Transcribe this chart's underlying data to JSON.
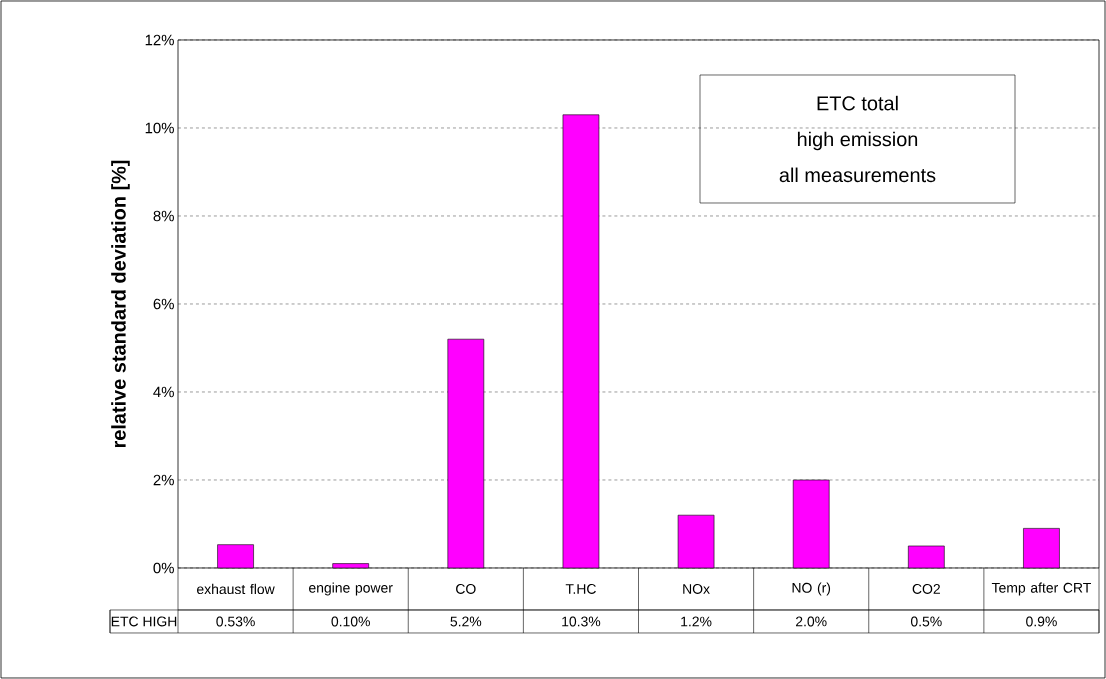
{
  "chart_data": {
    "type": "bar",
    "categories": [
      "exhaust flow",
      "engine power",
      "CO",
      "T.HC",
      "NOx",
      "NO (r)",
      "CO2",
      "Temp after CRT"
    ],
    "series": [
      {
        "name": "ETC HIGH",
        "color": "#ff00ff",
        "values": [
          0.53,
          0.1,
          5.2,
          10.3,
          1.2,
          2.0,
          0.5,
          0.9
        ],
        "value_labels": [
          "0.53%",
          "0.10%",
          "5.2%",
          "10.3%",
          "1.2%",
          "2.0%",
          "0.5%",
          "0.9%"
        ]
      }
    ],
    "ylabel": "relative standard deviation [%]",
    "ylim": [
      0,
      12
    ],
    "yticks": [
      {
        "value": 0,
        "label": "0%"
      },
      {
        "value": 2,
        "label": "2%"
      },
      {
        "value": 4,
        "label": "4%"
      },
      {
        "value": 6,
        "label": "6%"
      },
      {
        "value": 8,
        "label": "8%"
      },
      {
        "value": 10,
        "label": "10%"
      },
      {
        "value": 12,
        "label": "12%"
      }
    ],
    "grid": "y",
    "annotations": [
      "ETC total",
      "high emission",
      "all measurements"
    ]
  }
}
